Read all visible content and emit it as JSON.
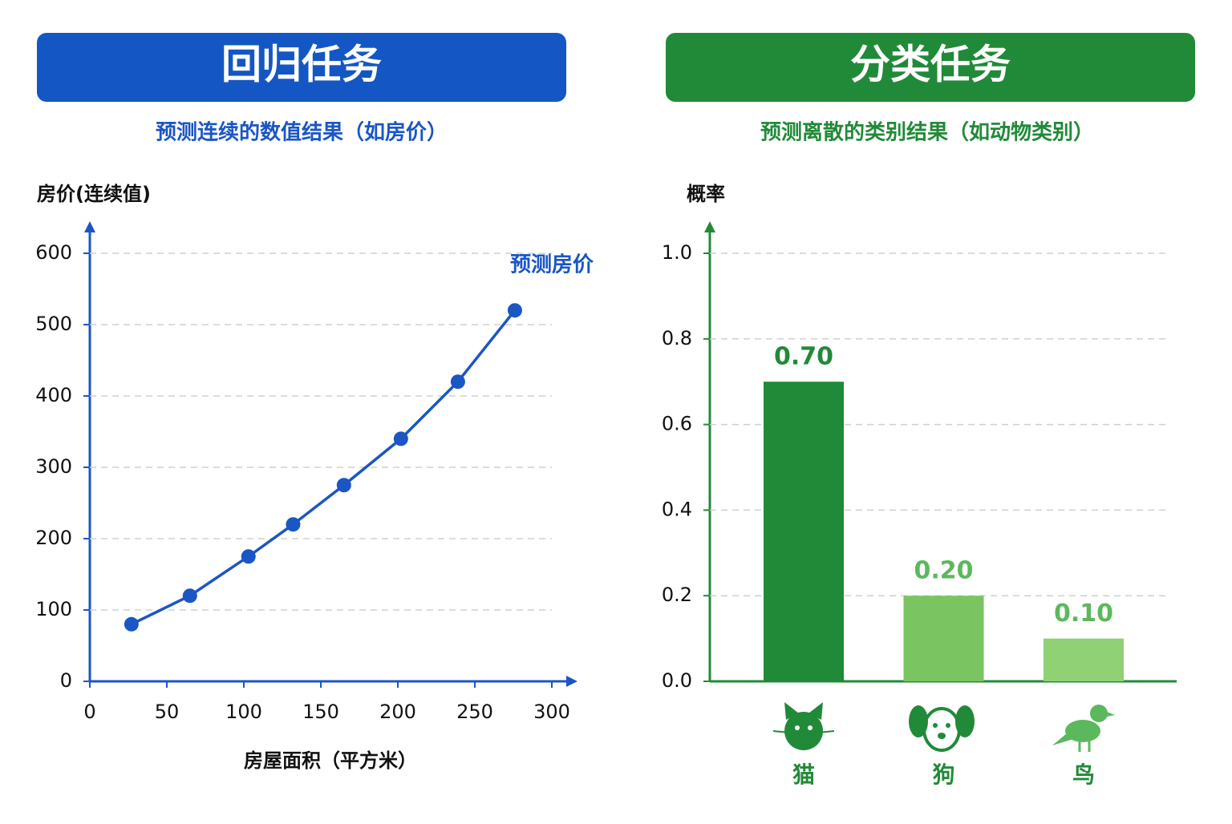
{
  "panels": [
    {
      "header": "回归任务",
      "subtitle": "预测连续的数值结果（如房价）"
    },
    {
      "header": "分类任务",
      "subtitle": "预测离散的类别结果（如动物类别）"
    }
  ],
  "chart_data": [
    {
      "type": "line",
      "y_label": "房价(连续值)",
      "x_label": "房屋面积（平方米）",
      "x": [
        27,
        65,
        103,
        132,
        165,
        202,
        239,
        276
      ],
      "series": [
        {
          "name": "预测房价",
          "color": "#1a56c4",
          "values": [
            80,
            120,
            175,
            220,
            275,
            340,
            420,
            520
          ]
        }
      ],
      "xlim": [
        0,
        300
      ],
      "xticks": [
        0,
        50,
        100,
        150,
        200,
        250,
        300
      ],
      "ylim": [
        0,
        600
      ],
      "yticks": [
        0,
        100,
        200,
        300,
        400,
        500,
        600
      ],
      "grid": true
    },
    {
      "type": "bar",
      "y_label": "概率",
      "categories": [
        "猫",
        "狗",
        "鸟"
      ],
      "values": [
        0.7,
        0.2,
        0.1
      ],
      "value_labels": [
        "0.70",
        "0.20",
        "0.10"
      ],
      "colors": [
        "#218a38",
        "#7ac462",
        "#8fd174"
      ],
      "ylim": [
        0,
        1.0
      ],
      "yticks": [
        {
          "value": 0,
          "label": "0.0"
        },
        {
          "value": 0.2,
          "label": "0.2"
        },
        {
          "value": 0.4,
          "label": "0.4"
        },
        {
          "value": 0.6,
          "label": "0.6"
        },
        {
          "value": 0.8,
          "label": "0.8"
        },
        {
          "value": 1.0,
          "label": "1.0"
        }
      ],
      "grid": true
    }
  ]
}
